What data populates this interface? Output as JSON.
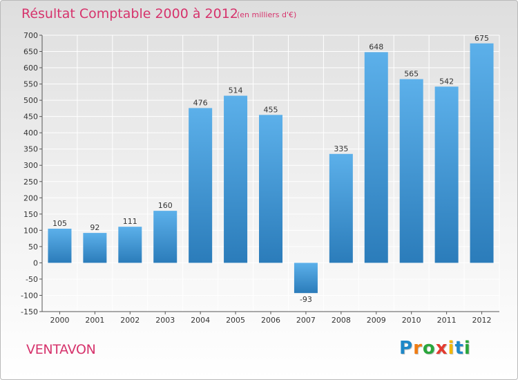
{
  "chart_data": {
    "type": "bar",
    "title": "Résultat Comptable 2000 à 2012",
    "subtitle": "(en milliers d'€)",
    "categories": [
      "2000",
      "2001",
      "2002",
      "2003",
      "2004",
      "2005",
      "2006",
      "2007",
      "2008",
      "2009",
      "2010",
      "2011",
      "2012"
    ],
    "values": [
      105,
      92,
      111,
      160,
      476,
      514,
      455,
      -93,
      335,
      648,
      565,
      542,
      675
    ],
    "yticks": [
      -150,
      -100,
      -50,
      0,
      50,
      100,
      150,
      200,
      250,
      300,
      350,
      400,
      450,
      500,
      550,
      600,
      650,
      700
    ],
    "ylim": [
      -150,
      700
    ],
    "xlabel": "",
    "ylabel": "",
    "grid": true
  },
  "commune": "VENTAVON",
  "logo": {
    "letters": [
      {
        "ch": "P",
        "color": "#1e88c8"
      },
      {
        "ch": "r",
        "color": "#f07c12"
      },
      {
        "ch": "o",
        "color": "#2aa63c"
      },
      {
        "ch": "x",
        "color": "#e43a2f"
      },
      {
        "ch": "i",
        "color": "#f2b705"
      },
      {
        "ch": "t",
        "color": "#1e88c8"
      },
      {
        "ch": "i",
        "color": "#2aa63c"
      }
    ]
  },
  "colors": {
    "bar_top": "#5cb0ea",
    "bar_bottom": "#2b7cba",
    "title": "#d6336c",
    "grid": "#ffffff",
    "axis": "#555555"
  }
}
